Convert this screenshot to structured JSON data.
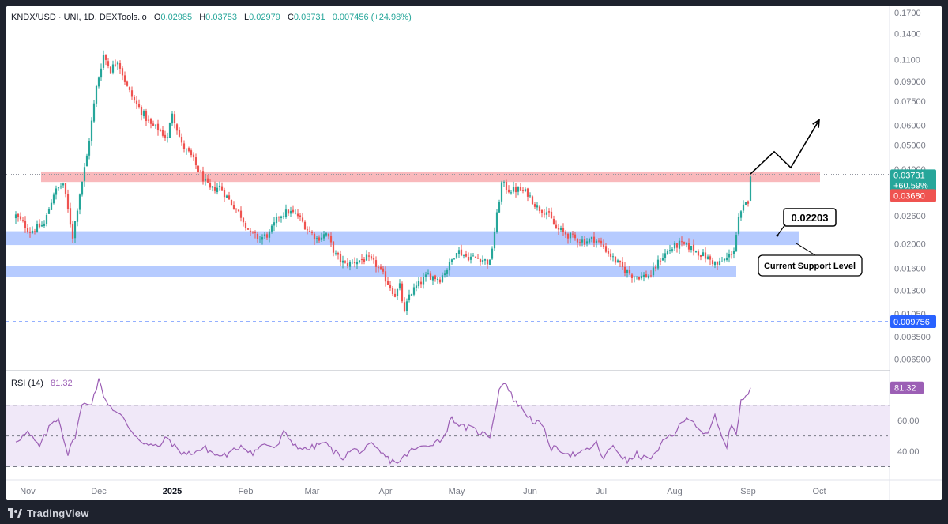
{
  "header": {
    "symbol": "KNDX/USD · UNI, 1D, DEXTools.io",
    "o_label": "O",
    "o_value": "0.02985",
    "h_label": "H",
    "h_value": "0.03753",
    "l_label": "L",
    "l_value": "0.02979",
    "c_label": "C",
    "c_value": "0.03731",
    "change": "0.007456 (+24.98%)"
  },
  "footer": {
    "brand": "TradingView"
  },
  "colors": {
    "up": "#26a69a",
    "down": "#ef5350",
    "resistance_zone": "#f7a1a6",
    "support_zone": "#a9c2ff",
    "rsi_line": "#9c5fb5",
    "rsi_fill": "#f0e8f8",
    "dashed_blue": "#2962ff",
    "axis_text": "#787b86"
  },
  "chart_data": [
    {
      "type": "candlestick",
      "title": "KNDX/USD · UNI, 1D, DEXTools.io",
      "scale": "log",
      "ylim": [
        0.0062,
        0.18
      ],
      "x_start_date": "2024-10-27",
      "x_tick_labels": [
        {
          "date": "2024-11-01",
          "label": "Nov",
          "bold": false
        },
        {
          "date": "2024-12-01",
          "label": "Dec",
          "bold": false
        },
        {
          "date": "2025-01-01",
          "label": "2025",
          "bold": true
        },
        {
          "date": "2025-02-01",
          "label": "Feb",
          "bold": false
        },
        {
          "date": "2025-03-01",
          "label": "Mar",
          "bold": false
        },
        {
          "date": "2025-04-01",
          "label": "Apr",
          "bold": false
        },
        {
          "date": "2025-05-01",
          "label": "May",
          "bold": false
        },
        {
          "date": "2025-06-01",
          "label": "Jun",
          "bold": false
        },
        {
          "date": "2025-07-01",
          "label": "Jul",
          "bold": false
        },
        {
          "date": "2025-08-01",
          "label": "Aug",
          "bold": false
        },
        {
          "date": "2025-09-01",
          "label": "Sep",
          "bold": false
        },
        {
          "date": "2025-10-01",
          "label": "Oct",
          "bold": false
        }
      ],
      "y_tick_labels": [
        "0.1700",
        "0.1400",
        "0.1100",
        "0.09000",
        "0.07500",
        "0.06000",
        "0.05000",
        "0.04000",
        "0.02600",
        "0.02000",
        "0.01600",
        "0.01300",
        "0.01050",
        "0.008500",
        "0.006900"
      ],
      "y_tick_values": [
        0.17,
        0.14,
        0.11,
        0.09,
        0.075,
        0.06,
        0.05,
        0.04,
        0.026,
        0.02,
        0.016,
        0.013,
        0.0105,
        0.0085,
        0.0069
      ],
      "close_anchors": [
        [
          0,
          0.026
        ],
        [
          6,
          0.0225
        ],
        [
          12,
          0.024
        ],
        [
          16,
          0.032
        ],
        [
          20,
          0.035
        ],
        [
          24,
          0.0215
        ],
        [
          27,
          0.032
        ],
        [
          30,
          0.045
        ],
        [
          34,
          0.085
        ],
        [
          37,
          0.115
        ],
        [
          40,
          0.1
        ],
        [
          43,
          0.11
        ],
        [
          47,
          0.085
        ],
        [
          50,
          0.075
        ],
        [
          53,
          0.068
        ],
        [
          57,
          0.06
        ],
        [
          60,
          0.058
        ],
        [
          64,
          0.053
        ],
        [
          66,
          0.068
        ],
        [
          70,
          0.05
        ],
        [
          74,
          0.045
        ],
        [
          78,
          0.038
        ],
        [
          82,
          0.033
        ],
        [
          86,
          0.034
        ],
        [
          90,
          0.03
        ],
        [
          95,
          0.026
        ],
        [
          99,
          0.022
        ],
        [
          103,
          0.021
        ],
        [
          107,
          0.022
        ],
        [
          111,
          0.026
        ],
        [
          115,
          0.027
        ],
        [
          119,
          0.026
        ],
        [
          123,
          0.023
        ],
        [
          127,
          0.021
        ],
        [
          131,
          0.022
        ],
        [
          135,
          0.018
        ],
        [
          139,
          0.0165
        ],
        [
          143,
          0.017
        ],
        [
          148,
          0.0175
        ],
        [
          152,
          0.0165
        ],
        [
          156,
          0.0145
        ],
        [
          160,
          0.0125
        ],
        [
          162,
          0.0135
        ],
        [
          164,
          0.0105
        ],
        [
          166,
          0.0125
        ],
        [
          170,
          0.0138
        ],
        [
          174,
          0.015
        ],
        [
          179,
          0.0145
        ],
        [
          183,
          0.0165
        ],
        [
          186,
          0.019
        ],
        [
          190,
          0.0178
        ],
        [
          196,
          0.0175
        ],
        [
          200,
          0.0168
        ],
        [
          203,
          0.026
        ],
        [
          205,
          0.035
        ],
        [
          208,
          0.033
        ],
        [
          212,
          0.033
        ],
        [
          216,
          0.032
        ],
        [
          220,
          0.028
        ],
        [
          224,
          0.027
        ],
        [
          228,
          0.023
        ],
        [
          232,
          0.022
        ],
        [
          236,
          0.021
        ],
        [
          240,
          0.0205
        ],
        [
          244,
          0.021
        ],
        [
          248,
          0.0195
        ],
        [
          252,
          0.0175
        ],
        [
          256,
          0.016
        ],
        [
          260,
          0.015
        ],
        [
          264,
          0.0148
        ],
        [
          268,
          0.015
        ],
        [
          272,
          0.0175
        ],
        [
          276,
          0.019
        ],
        [
          280,
          0.02
        ],
        [
          284,
          0.0195
        ],
        [
          288,
          0.0185
        ],
        [
          292,
          0.0175
        ],
        [
          296,
          0.0165
        ],
        [
          300,
          0.0175
        ],
        [
          303,
          0.019
        ],
        [
          305,
          0.025
        ],
        [
          307,
          0.028
        ],
        [
          309,
          0.03
        ],
        [
          310,
          0.03731
        ]
      ],
      "last_bar": {
        "open": 0.02985,
        "high": 0.03753,
        "low": 0.02979,
        "close": 0.03731
      },
      "zones": [
        {
          "name": "resistance",
          "low": 0.0355,
          "high": 0.0391
        },
        {
          "name": "support",
          "low": 0.0198,
          "high": 0.0225
        },
        {
          "name": "lower-support",
          "low": 0.0147,
          "high": 0.0163
        }
      ],
      "levels": [
        {
          "name": "recent-high",
          "value": 0.0381
        },
        {
          "name": "low-level",
          "value": 0.009756
        }
      ],
      "price_labels": [
        {
          "name": "last-price",
          "value": "0.03731",
          "change": "+60.59%"
        },
        {
          "name": "previous-close",
          "value": "0.03680"
        },
        {
          "name": "low-level",
          "value": "0.009756"
        }
      ],
      "annotations": {
        "level_callout": "0.02203",
        "support_label": "Current Support Level",
        "projection_path": [
          {
            "day": 310,
            "value": 0.0382
          },
          {
            "day": 320,
            "value": 0.047
          },
          {
            "day": 327,
            "value": 0.0405
          },
          {
            "day": 339,
            "value": 0.063
          }
        ]
      }
    },
    {
      "type": "line",
      "title": "RSI (14)",
      "current_value": "81.32",
      "ylim": [
        22,
        92
      ],
      "y_tick_labels": [
        "60.00",
        "40.00"
      ],
      "y_tick_values": [
        60,
        40
      ],
      "band_levels": [
        70,
        50,
        30
      ],
      "anchors": [
        [
          0,
          47
        ],
        [
          5,
          52
        ],
        [
          10,
          43
        ],
        [
          15,
          58
        ],
        [
          18,
          62
        ],
        [
          22,
          38
        ],
        [
          25,
          50
        ],
        [
          28,
          70
        ],
        [
          32,
          72
        ],
        [
          35,
          86
        ],
        [
          38,
          73
        ],
        [
          42,
          66
        ],
        [
          45,
          62
        ],
        [
          48,
          55
        ],
        [
          52,
          48
        ],
        [
          56,
          44
        ],
        [
          60,
          43
        ],
        [
          64,
          49
        ],
        [
          68,
          41
        ],
        [
          72,
          38
        ],
        [
          76,
          40
        ],
        [
          80,
          42
        ],
        [
          85,
          37
        ],
        [
          90,
          38
        ],
        [
          95,
          44
        ],
        [
          100,
          39
        ],
        [
          105,
          45
        ],
        [
          110,
          42
        ],
        [
          113,
          52
        ],
        [
          118,
          44
        ],
        [
          122,
          41
        ],
        [
          126,
          43
        ],
        [
          130,
          46
        ],
        [
          134,
          40
        ],
        [
          138,
          36
        ],
        [
          142,
          41
        ],
        [
          146,
          40
        ],
        [
          150,
          44
        ],
        [
          154,
          39
        ],
        [
          158,
          34
        ],
        [
          162,
          33
        ],
        [
          166,
          40
        ],
        [
          170,
          42
        ],
        [
          175,
          45
        ],
        [
          180,
          48
        ],
        [
          184,
          62
        ],
        [
          188,
          56
        ],
        [
          192,
          55
        ],
        [
          196,
          52
        ],
        [
          200,
          50
        ],
        [
          204,
          80
        ],
        [
          206,
          86
        ],
        [
          210,
          74
        ],
        [
          214,
          67
        ],
        [
          218,
          60
        ],
        [
          222,
          57
        ],
        [
          226,
          42
        ],
        [
          230,
          41
        ],
        [
          234,
          38
        ],
        [
          238,
          38
        ],
        [
          242,
          42
        ],
        [
          245,
          45
        ],
        [
          248,
          35
        ],
        [
          252,
          44
        ],
        [
          255,
          38
        ],
        [
          258,
          33
        ],
        [
          262,
          38
        ],
        [
          266,
          35
        ],
        [
          270,
          38
        ],
        [
          274,
          48
        ],
        [
          278,
          52
        ],
        [
          282,
          60
        ],
        [
          285,
          62
        ],
        [
          288,
          55
        ],
        [
          292,
          50
        ],
        [
          295,
          63
        ],
        [
          298,
          48
        ],
        [
          300,
          44
        ],
        [
          302,
          58
        ],
        [
          304,
          52
        ],
        [
          306,
          73
        ],
        [
          309,
          76
        ],
        [
          310,
          81.32
        ]
      ]
    }
  ]
}
